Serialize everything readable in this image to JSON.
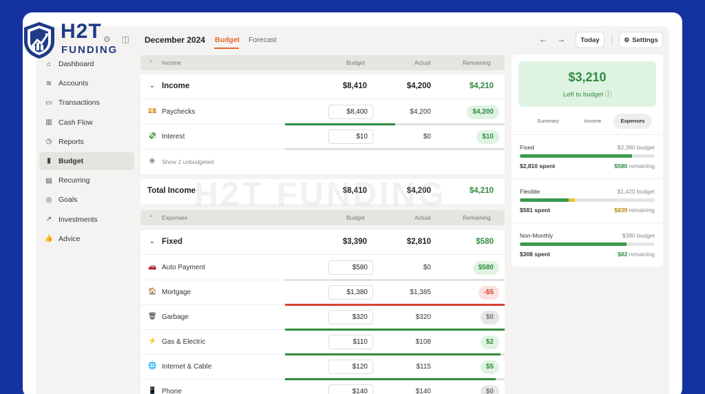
{
  "brand": {
    "line1": "H2T",
    "line2": "FUNDING",
    "watermark": "H2T FUNDING",
    "color": "#1f3a86"
  },
  "sidebar": {
    "items": [
      {
        "label": "Dashboard",
        "icon": "home-icon",
        "glyph": "⌂"
      },
      {
        "label": "Accounts",
        "icon": "layers-icon",
        "glyph": "≋"
      },
      {
        "label": "Transactions",
        "icon": "card-icon",
        "glyph": "▭"
      },
      {
        "label": "Cash Flow",
        "icon": "bars-icon",
        "glyph": "▥"
      },
      {
        "label": "Reports",
        "icon": "clock-icon",
        "glyph": "◷"
      },
      {
        "label": "Budget",
        "icon": "map-icon",
        "glyph": "▮",
        "active": true
      },
      {
        "label": "Recurring",
        "icon": "calendar-icon",
        "glyph": "▤"
      },
      {
        "label": "Goals",
        "icon": "target-icon",
        "glyph": "◎"
      },
      {
        "label": "Investments",
        "icon": "trend-icon",
        "glyph": "↗"
      },
      {
        "label": "Advice",
        "icon": "thumb-icon",
        "glyph": "👍"
      }
    ]
  },
  "header": {
    "title": "December 2024",
    "tabs": [
      "Budget",
      "Forecast"
    ],
    "prev": "←",
    "next": "→",
    "today": "Today",
    "settings": "Settings"
  },
  "income": {
    "section_label": "Income",
    "col_budget": "Budget",
    "col_actual": "Actual",
    "col_remaining": "Remaining",
    "group": {
      "name": "Income",
      "budget": "$8,410",
      "actual": "$4,200",
      "remaining": "$4,210"
    },
    "rows": [
      {
        "icon": "💴",
        "name": "Paychecks",
        "budget": "$8,400",
        "actual": "$4,200",
        "remaining": "$4,200",
        "status": "green",
        "progress": 0.5,
        "bar": "#2e8b3e"
      },
      {
        "icon": "💸",
        "name": "Interest",
        "budget": "$10",
        "actual": "$0",
        "remaining": "$10",
        "status": "green",
        "progress": 0,
        "bar": "#2e8b3e"
      }
    ],
    "show_unbudgeted": "Show 2 unbudgeted",
    "total": {
      "name": "Total Income",
      "budget": "$8,410",
      "actual": "$4,200",
      "remaining": "$4,210"
    }
  },
  "expenses": {
    "section_label": "Expenses",
    "col_budget": "Budget",
    "col_actual": "Actual",
    "col_remaining": "Remaining",
    "group": {
      "name": "Fixed",
      "budget": "$3,390",
      "actual": "$2,810",
      "remaining": "$580"
    },
    "rows": [
      {
        "icon": "🚗",
        "name": "Auto Payment",
        "budget": "$580",
        "actual": "$0",
        "remaining": "$580",
        "status": "green",
        "progress": 0,
        "bar": "#2e8b3e"
      },
      {
        "icon": "🏠",
        "name": "Mortgage",
        "budget": "$1,380",
        "actual": "$1,385",
        "remaining": "-$5",
        "status": "red",
        "progress": 1,
        "bar": "#d64234"
      },
      {
        "icon": "🗑",
        "name": "Garbage",
        "budget": "$320",
        "actual": "$320",
        "remaining": "$0",
        "status": "gray",
        "progress": 1,
        "bar": "#2e8b3e"
      },
      {
        "icon": "⚡",
        "name": "Gas & Electric",
        "budget": "$110",
        "actual": "$108",
        "remaining": "$2",
        "status": "green",
        "progress": 0.98,
        "bar": "#2e8b3e"
      },
      {
        "icon": "🌐",
        "name": "Internet & Cable",
        "budget": "$120",
        "actual": "$115",
        "remaining": "$5",
        "status": "green",
        "progress": 0.96,
        "bar": "#2e8b3e"
      },
      {
        "icon": "📱",
        "name": "Phone",
        "budget": "$140",
        "actual": "$140",
        "remaining": "$0",
        "status": "gray",
        "progress": 1,
        "bar": "#2e8b3e"
      }
    ]
  },
  "summary": {
    "amount": "$3,210",
    "label": "Left to budget",
    "tabs": [
      "Summary",
      "Income",
      "Expenses"
    ],
    "active_tab": "Expenses",
    "sections": [
      {
        "name": "Fixed",
        "budget": "$3,390 budget",
        "spent": "$2,810 spent",
        "remaining_amt": "$580",
        "remaining_word": "remaining",
        "remaining_color": "#2e8b3e",
        "progress": 0.83,
        "extra": 0,
        "bar": "#3a9a4f"
      },
      {
        "name": "Flexible",
        "budget": "$1,420 budget",
        "spent": "$581 spent",
        "remaining_amt": "$839",
        "remaining_word": "remaining",
        "remaining_color": "#b8860b",
        "progress": 0.36,
        "extra": 0.05,
        "bar": "#3a9a4f"
      },
      {
        "name": "Non-Monthly",
        "budget": "$390 budget",
        "spent": "$308 spent",
        "remaining_amt": "$82",
        "remaining_word": "remaining",
        "remaining_color": "#2e8b3e",
        "progress": 0.79,
        "extra": 0,
        "bar": "#3a9a4f"
      }
    ]
  }
}
